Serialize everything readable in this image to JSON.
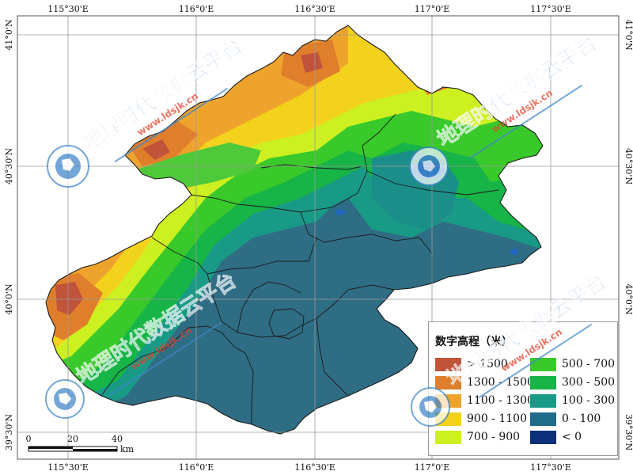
{
  "map": {
    "top_axis_labels": [
      "115°30'E",
      "116°0'E",
      "116°30'E",
      "117°0'E",
      "117°30'E"
    ],
    "bottom_axis_labels": [
      "115°30'E",
      "116°0'E",
      "116°30'E",
      "117°0'E",
      "117°30'E"
    ],
    "left_axis_labels": [
      "41°0'N",
      "40°30'N",
      "40°0'N",
      "39°30'N"
    ],
    "right_axis_labels": [
      "41°0'N",
      "40°30'N",
      "40°0'N",
      "39°30'N"
    ],
    "colors": {
      "frame": "#555555",
      "graticule": "#9a9a9a",
      "plain": "#2f6d84",
      "district_border": "#1a1a1a",
      "water": "#1f66c8"
    }
  },
  "legend": {
    "title": "数字高程（米）",
    "items": [
      {
        "label": "> 1500",
        "color": "#c0533a"
      },
      {
        "label": "1300 - 1500",
        "color": "#df7f2c"
      },
      {
        "label": "1100 - 1300",
        "color": "#eea42c"
      },
      {
        "label": "900 - 1100",
        "color": "#f3d21e"
      },
      {
        "label": "700 - 900",
        "color": "#cdf020"
      },
      {
        "label": "500 - 700",
        "color": "#39c92a"
      },
      {
        "label": "300 - 500",
        "color": "#17b447"
      },
      {
        "label": "100 - 300",
        "color": "#199a86"
      },
      {
        "label": "0 - 100",
        "color": "#1e6b8a"
      },
      {
        "label": "< 0",
        "color": "#0e2f7a"
      }
    ]
  },
  "scale_bar": {
    "tick_labels": [
      "0",
      "20",
      "40"
    ],
    "unit": "km"
  },
  "watermark": {
    "title": "地理时代数据云平台",
    "url": "www.ldsjk.cn",
    "color": "#3f86c9"
  }
}
